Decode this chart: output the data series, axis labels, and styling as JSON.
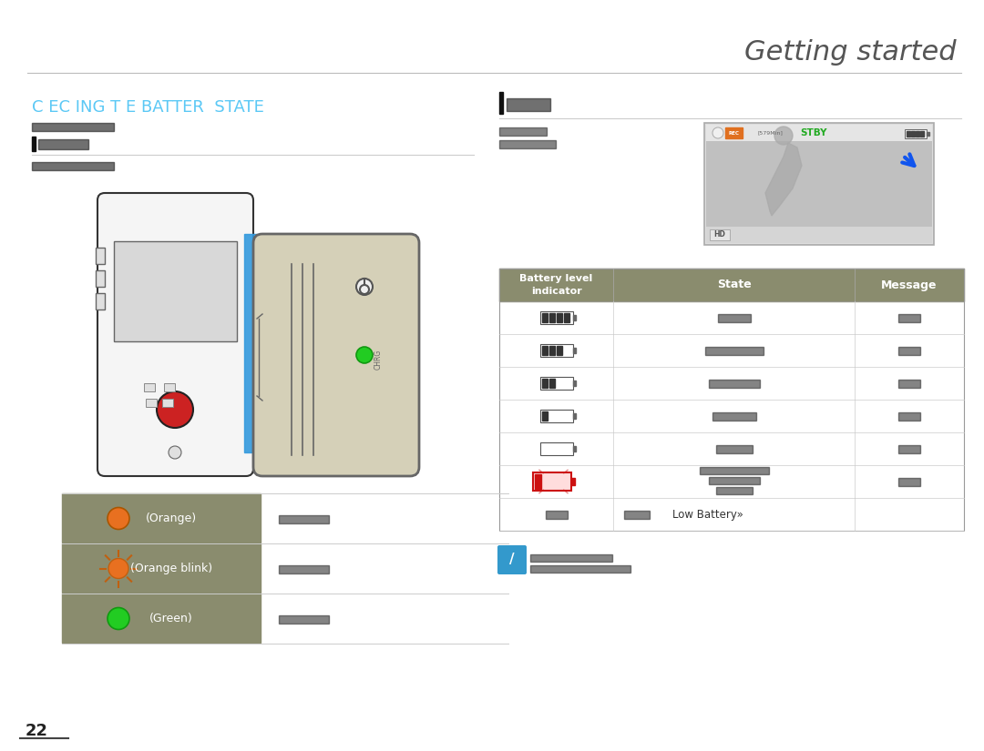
{
  "title": "Getting started",
  "section_title": "C EC ING T E BATTER  STATE",
  "bg_color": "#ffffff",
  "title_color": "#555555",
  "section_title_color": "#5bc8f5",
  "header_bg": "#8a8c6e",
  "header_text_color": "#ffffff",
  "divider_color": "#cccccc",
  "page_number": "22",
  "led_table": {
    "rows": [
      {
        "color": "#e87020",
        "blink": false,
        "label": "(Orange)"
      },
      {
        "color": "#e87020",
        "blink": true,
        "label": "(Orange blink)"
      },
      {
        "color": "#22cc22",
        "blink": false,
        "label": "(Green)"
      }
    ]
  }
}
